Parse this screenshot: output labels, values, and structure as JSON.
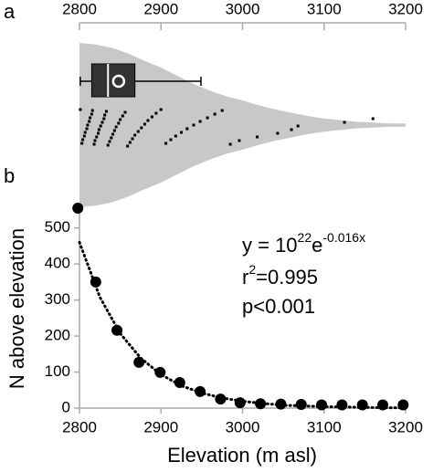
{
  "chart_data": [
    {
      "type": "violin",
      "label": "a",
      "xlim": [
        2800,
        3200
      ],
      "xticks": [
        2800,
        2900,
        3000,
        3100,
        3200
      ],
      "density_x": [
        2800,
        2820,
        2840,
        2860,
        2880,
        2900,
        2920,
        2940,
        2960,
        2980,
        3000,
        3020,
        3040,
        3060,
        3080,
        3100,
        3120,
        3140,
        3160,
        3180,
        3200
      ],
      "density": [
        1,
        0.98,
        0.94,
        0.87,
        0.78,
        0.7,
        0.6,
        0.5,
        0.42,
        0.35,
        0.3,
        0.24,
        0.19,
        0.15,
        0.11,
        0.08,
        0.06,
        0.04,
        0.03,
        0.02,
        0.02
      ],
      "color": "#c8c8c8",
      "box": {
        "whisker_low": 2801,
        "q1": 2815,
        "median": 2835,
        "mean": 2848,
        "q3": 2868,
        "whisker_high": 2949
      },
      "points": [
        2801,
        2803,
        2804,
        2806,
        2807,
        2809,
        2810,
        2812,
        2813,
        2815,
        2816,
        2818,
        2819,
        2821,
        2823,
        2824,
        2826,
        2828,
        2830,
        2831,
        2833,
        2835,
        2837,
        2839,
        2841,
        2843,
        2845,
        2848,
        2850,
        2853,
        2856,
        2859,
        2862,
        2865,
        2868,
        2872,
        2876,
        2880,
        2884,
        2889,
        2894,
        2900,
        2906,
        2912,
        2918,
        2925,
        2932,
        2940,
        2948,
        2957,
        2966,
        2975,
        2985,
        2996,
        3018,
        3043,
        3060,
        3068,
        3125,
        3160
      ]
    },
    {
      "type": "scatter",
      "label": "b",
      "x_label": "Elevation (m asl)",
      "y_label": "N above elevation",
      "xlim": [
        2800,
        3200
      ],
      "xticks": [
        2800,
        2900,
        3000,
        3100,
        3200
      ],
      "ylim": [
        0,
        560
      ],
      "yticks": [
        0,
        100,
        200,
        300,
        400,
        500
      ],
      "equation": {
        "base": "y = 10",
        "exp1": "22",
        "e": "e",
        "exp2": "-0.016x"
      },
      "r2": {
        "r": "r",
        "sup": "2",
        "rest": "=0.995"
      },
      "p": "p<0.001",
      "series": [
        {
          "name": "observed",
          "color": "#000000",
          "x": [
            2798,
            2820,
            2846,
            2873,
            2899,
            2923,
            2948,
            2973,
            2997,
            3022,
            3047,
            3072,
            3097,
            3122,
            3147,
            3172,
            3197
          ],
          "values": [
            555,
            350,
            216,
            127,
            99,
            71,
            46,
            25,
            15,
            12,
            11,
            10,
            9,
            9,
            9,
            9,
            9
          ]
        },
        {
          "name": "fit",
          "color": "#000000",
          "x": [
            2800,
            2825,
            2850,
            2875,
            2900,
            2925,
            2950,
            2975,
            3000,
            3025,
            3050,
            3075,
            3100,
            3125,
            3150,
            3175,
            3200
          ],
          "values": [
            460,
            308,
            207,
            139,
            93,
            62,
            42,
            28,
            19,
            13,
            8,
            6,
            4,
            3,
            2,
            1,
            1
          ]
        }
      ]
    }
  ]
}
